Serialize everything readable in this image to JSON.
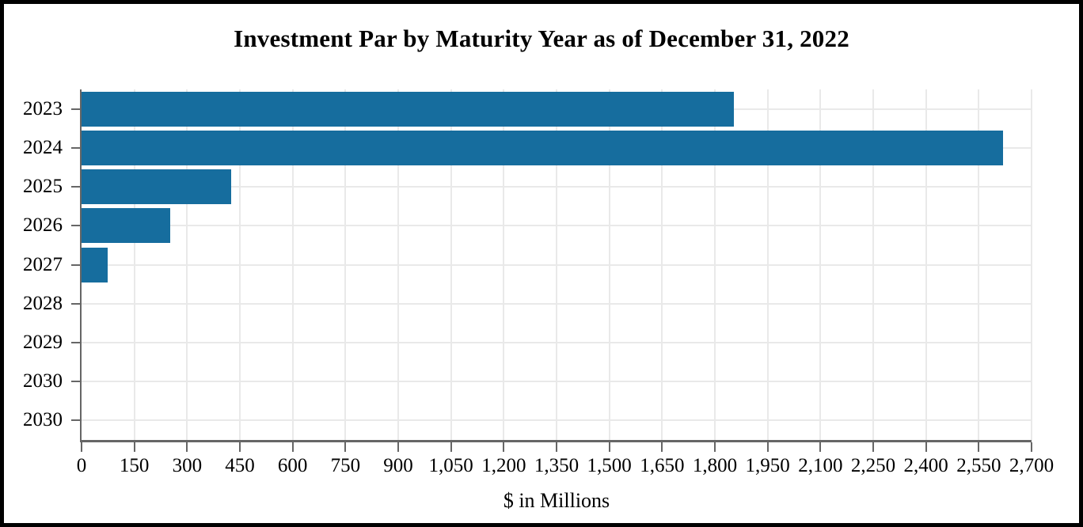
{
  "figure": {
    "title": "Investment Par by Maturity Year as of December 31, 2022",
    "x_axis_label": "$ in Millions"
  },
  "chart_data": {
    "type": "bar",
    "orientation": "horizontal",
    "title": "Investment Par by Maturity Year as of December 31, 2022",
    "xlabel": "$ in Millions",
    "ylabel": "",
    "categories": [
      "2023",
      "2024",
      "2025",
      "2026",
      "2027",
      "2028",
      "2029",
      "2030",
      "2030"
    ],
    "values": [
      1855,
      2620,
      425,
      253,
      74,
      0,
      0,
      0,
      0
    ],
    "xlim": [
      0,
      2700
    ],
    "x_tick_values": [
      0,
      150,
      300,
      450,
      600,
      750,
      900,
      1050,
      1200,
      1350,
      1500,
      1650,
      1800,
      1950,
      2100,
      2250,
      2400,
      2550,
      2700
    ],
    "x_tick_labels": [
      "0",
      "150",
      "300",
      "450",
      "600",
      "750",
      "900",
      "1,050",
      "1,200",
      "1,350",
      "1,500",
      "1,650",
      "1,800",
      "1,950",
      "2,100",
      "2,250",
      "2,400",
      "2,550",
      "2,700"
    ],
    "grid": true,
    "legend_position": "none",
    "colors": {
      "bar": "#166d9e",
      "gridline": "#e9e9e9",
      "axis": "#666666",
      "text": "#000000",
      "frame_border": "#000000",
      "background": "#ffffff"
    }
  }
}
